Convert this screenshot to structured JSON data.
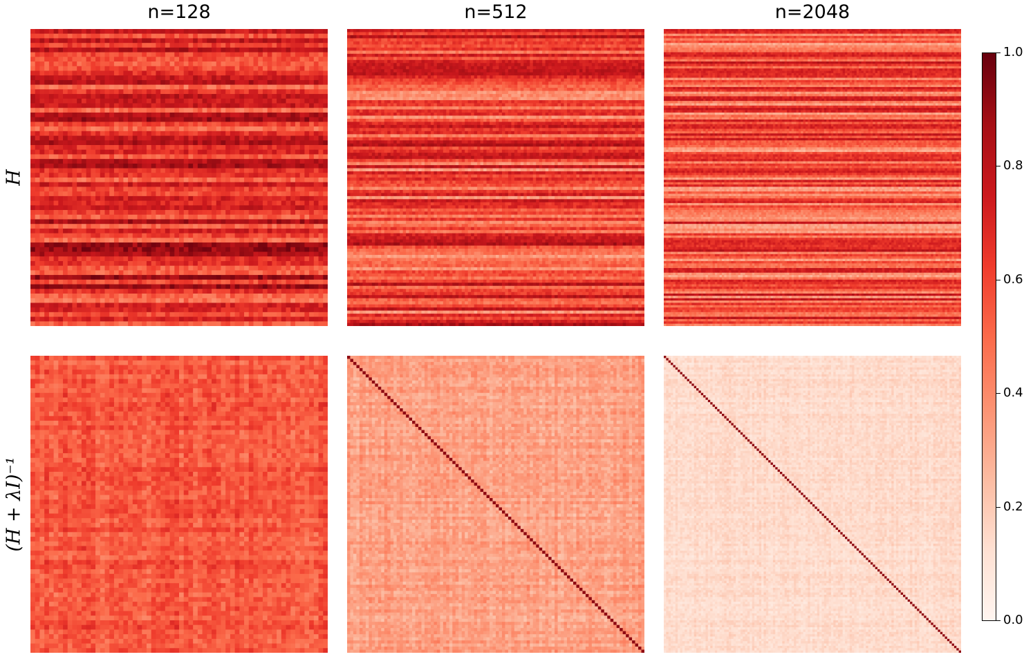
{
  "columns": [
    "n=128",
    "n=512",
    "n=2048"
  ],
  "rows": [
    "H",
    "(H + λI)⁻¹"
  ],
  "colorbar": {
    "min": 0.0,
    "max": 1.0,
    "ticks": [
      "0.0",
      "0.2",
      "0.4",
      "0.6",
      "0.8",
      "1.0"
    ],
    "colormap": "Reds",
    "colors": [
      "#fff5f0",
      "#fee0d2",
      "#fcbba1",
      "#fc9272",
      "#fb6a4a",
      "#ef3b2c",
      "#cb181d",
      "#a50f15",
      "#67000d"
    ]
  },
  "chart_data": [
    {
      "type": "heatmap",
      "row": "H",
      "title": "n=128",
      "grid_cells": 64,
      "diagonal": false,
      "mean_level": 0.68,
      "row_variation": 0.22,
      "noise": 0.09,
      "vmin": 0,
      "vmax": 1
    },
    {
      "type": "heatmap",
      "row": "H",
      "title": "n=512",
      "grid_cells": 96,
      "diagonal": false,
      "mean_level": 0.6,
      "row_variation": 0.25,
      "noise": 0.07,
      "vmin": 0,
      "vmax": 1
    },
    {
      "type": "heatmap",
      "row": "H",
      "title": "n=2048",
      "grid_cells": 128,
      "diagonal": false,
      "mean_level": 0.55,
      "row_variation": 0.24,
      "noise": 0.06,
      "vmin": 0,
      "vmax": 1
    },
    {
      "type": "heatmap",
      "row": "(H + λI)⁻¹",
      "title": "n=128",
      "grid_cells": 64,
      "diagonal": false,
      "mean_level": 0.55,
      "row_variation": 0.08,
      "noise": 0.08,
      "vmin": 0,
      "vmax": 1
    },
    {
      "type": "heatmap",
      "row": "(H + λI)⁻¹",
      "title": "n=512",
      "grid_cells": 96,
      "diagonal": true,
      "diagonal_value": 0.92,
      "mean_level": 0.33,
      "row_variation": 0.07,
      "noise": 0.06,
      "vmin": 0,
      "vmax": 1
    },
    {
      "type": "heatmap",
      "row": "(H + λI)⁻¹",
      "title": "n=2048",
      "grid_cells": 128,
      "diagonal": true,
      "diagonal_value": 0.92,
      "mean_level": 0.14,
      "row_variation": 0.04,
      "noise": 0.04,
      "vmin": 0,
      "vmax": 1
    }
  ]
}
